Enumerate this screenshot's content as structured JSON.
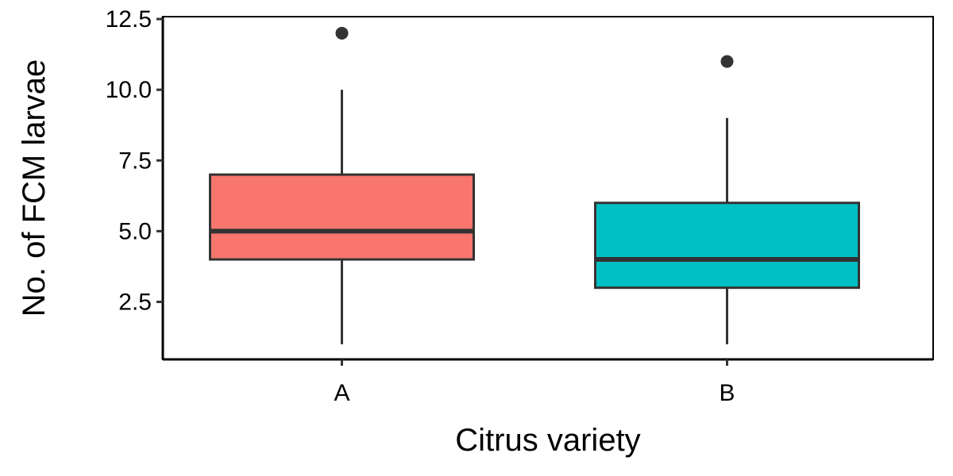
{
  "chart_data": {
    "type": "boxplot",
    "title": "",
    "xlabel": "Citrus variety",
    "ylabel": "No. of FCM larvae",
    "categories": [
      "A",
      "B"
    ],
    "ylim": [
      1,
      12.5
    ],
    "yticks": [
      2.5,
      5.0,
      7.5,
      10.0,
      12.5
    ],
    "ytick_labels": [
      "2.5",
      "5.0",
      "7.5",
      "10.0",
      "12.5"
    ],
    "grid": false,
    "legend": "none",
    "boxes": [
      {
        "category": "A",
        "whisker_low": 1,
        "q1": 4,
        "median": 5,
        "q3": 7,
        "whisker_high": 10,
        "outliers": [
          12
        ],
        "color": "#F8766D"
      },
      {
        "category": "B",
        "whisker_low": 1,
        "q1": 3,
        "median": 4,
        "q3": 6,
        "whisker_high": 9,
        "outliers": [
          11
        ],
        "color": "#00BFC4"
      }
    ],
    "line_color": "#333333",
    "axis_color": "#000000"
  }
}
